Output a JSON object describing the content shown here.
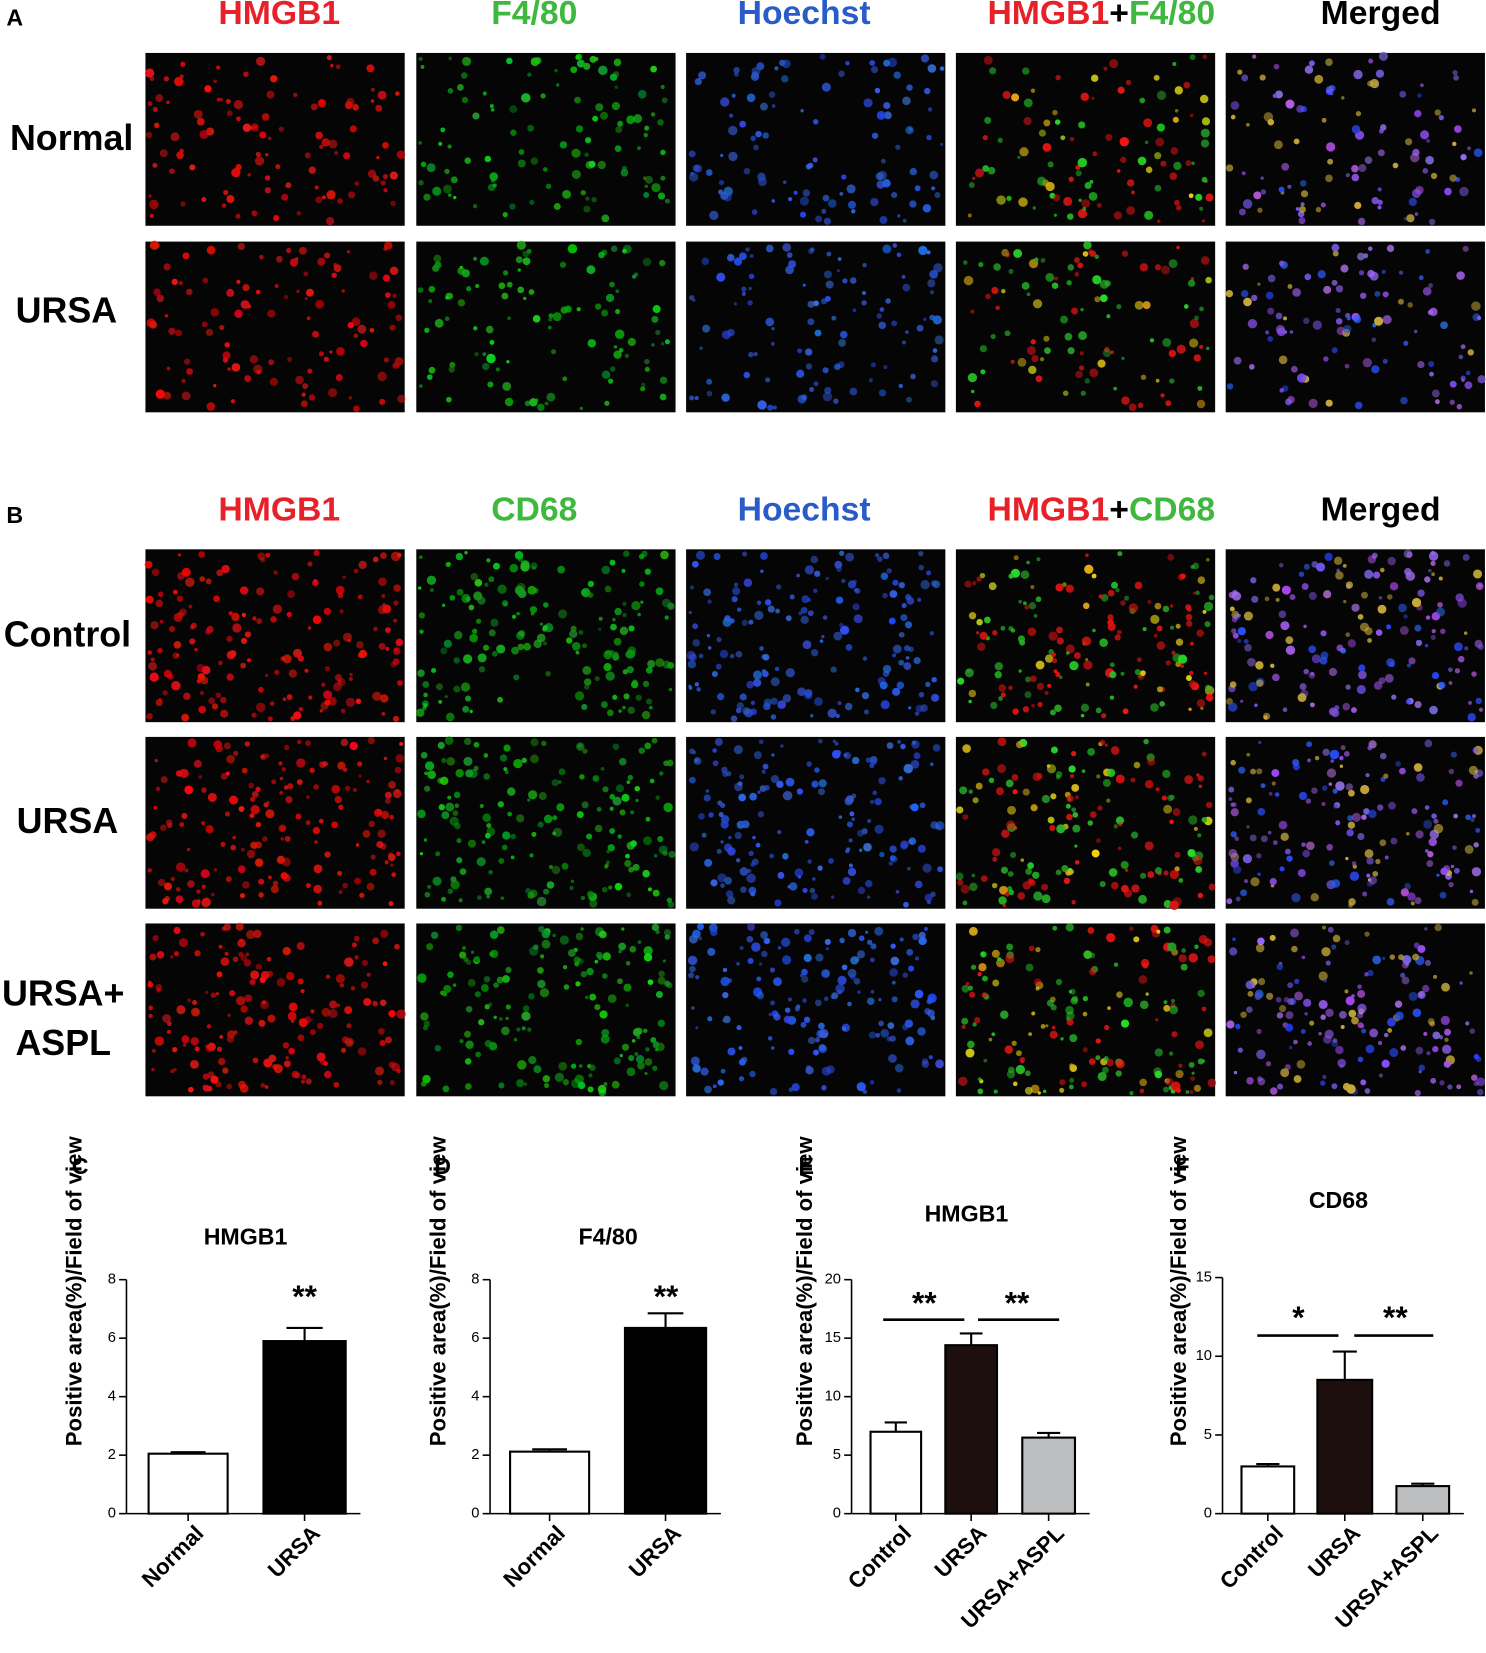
{
  "panels": [
    {
      "label": "A",
      "headers": [
        [
          {
            "text": "HMGB1",
            "color": "#e8202a"
          }
        ],
        [
          {
            "text": "F4/80",
            "color": "#3fb83f"
          }
        ],
        [
          {
            "text": "Hoechst",
            "color": "#2a5cc9"
          }
        ],
        [
          {
            "text": "HMGB1",
            "color": "#e8202a"
          },
          {
            "text": "+",
            "color": "#000000"
          },
          {
            "text": "F4/80",
            "color": "#3fb83f"
          }
        ],
        [
          {
            "text": "Merged",
            "color": "#000000"
          }
        ]
      ],
      "rows": [
        [
          "Normal"
        ],
        [
          "URSA"
        ]
      ]
    },
    {
      "label": "B",
      "headers": [
        [
          {
            "text": "HMGB1",
            "color": "#e8202a"
          }
        ],
        [
          {
            "text": "CD68",
            "color": "#3fb83f"
          }
        ],
        [
          {
            "text": "Hoechst",
            "color": "#2a5cc9"
          }
        ],
        [
          {
            "text": "HMGB1",
            "color": "#e8202a"
          },
          {
            "text": "+",
            "color": "#000000"
          },
          {
            "text": "CD68",
            "color": "#3fb83f"
          }
        ],
        [
          {
            "text": "Merged",
            "color": "#000000"
          }
        ]
      ],
      "rows": [
        [
          "Control"
        ],
        [
          "URSA"
        ],
        [
          "URSA+",
          "ASPL"
        ]
      ]
    }
  ],
  "chart_data": [
    {
      "type": "bar",
      "panel": "C",
      "title": "HMGB1",
      "y_label": "Positive area(%)/Field of view",
      "categories": [
        "Normal",
        "URSA"
      ],
      "values": [
        2.05,
        5.9
      ],
      "errors": [
        0.05,
        0.45
      ],
      "colors": [
        "#ffffff",
        "#000000"
      ],
      "ylim": [
        0,
        8
      ],
      "yticks": [
        0,
        2,
        4,
        6,
        8
      ],
      "annotations": [
        "**"
      ]
    },
    {
      "type": "bar",
      "panel": "D",
      "title": "F4/80",
      "y_label": "Positive area(%)/Field of view",
      "categories": [
        "Normal",
        "URSA"
      ],
      "values": [
        2.12,
        6.35
      ],
      "errors": [
        0.08,
        0.5
      ],
      "colors": [
        "#ffffff",
        "#000000"
      ],
      "ylim": [
        0,
        8
      ],
      "yticks": [
        0,
        2,
        4,
        6,
        8
      ],
      "annotations": [
        "**"
      ]
    },
    {
      "type": "bar",
      "panel": "E",
      "title": "HMGB1",
      "y_label": "Positive area(%)/Field of view",
      "categories": [
        "Control",
        "URSA",
        "URSA+ASPL"
      ],
      "values": [
        7.0,
        14.4,
        6.5
      ],
      "errors": [
        0.8,
        1.0,
        0.4
      ],
      "colors": [
        "#ffffff",
        "#1e0f0f",
        "#bbbdbf"
      ],
      "ylim": [
        0,
        20
      ],
      "yticks": [
        0,
        5,
        10,
        15,
        20
      ],
      "annotations": [
        "**",
        "**"
      ]
    },
    {
      "type": "bar",
      "panel": "F",
      "title": "CD68",
      "y_label": "Positive area(%)/Field of view",
      "categories": [
        "Control",
        "URSA",
        "URSA+ASPL"
      ],
      "values": [
        3.0,
        8.5,
        1.75
      ],
      "errors": [
        0.15,
        1.8,
        0.15
      ],
      "colors": [
        "#ffffff",
        "#1e0f0f",
        "#bbbdbf"
      ],
      "ylim": [
        0,
        15
      ],
      "yticks": [
        0,
        5,
        10,
        15
      ],
      "annotations": [
        "*",
        "**"
      ]
    }
  ]
}
